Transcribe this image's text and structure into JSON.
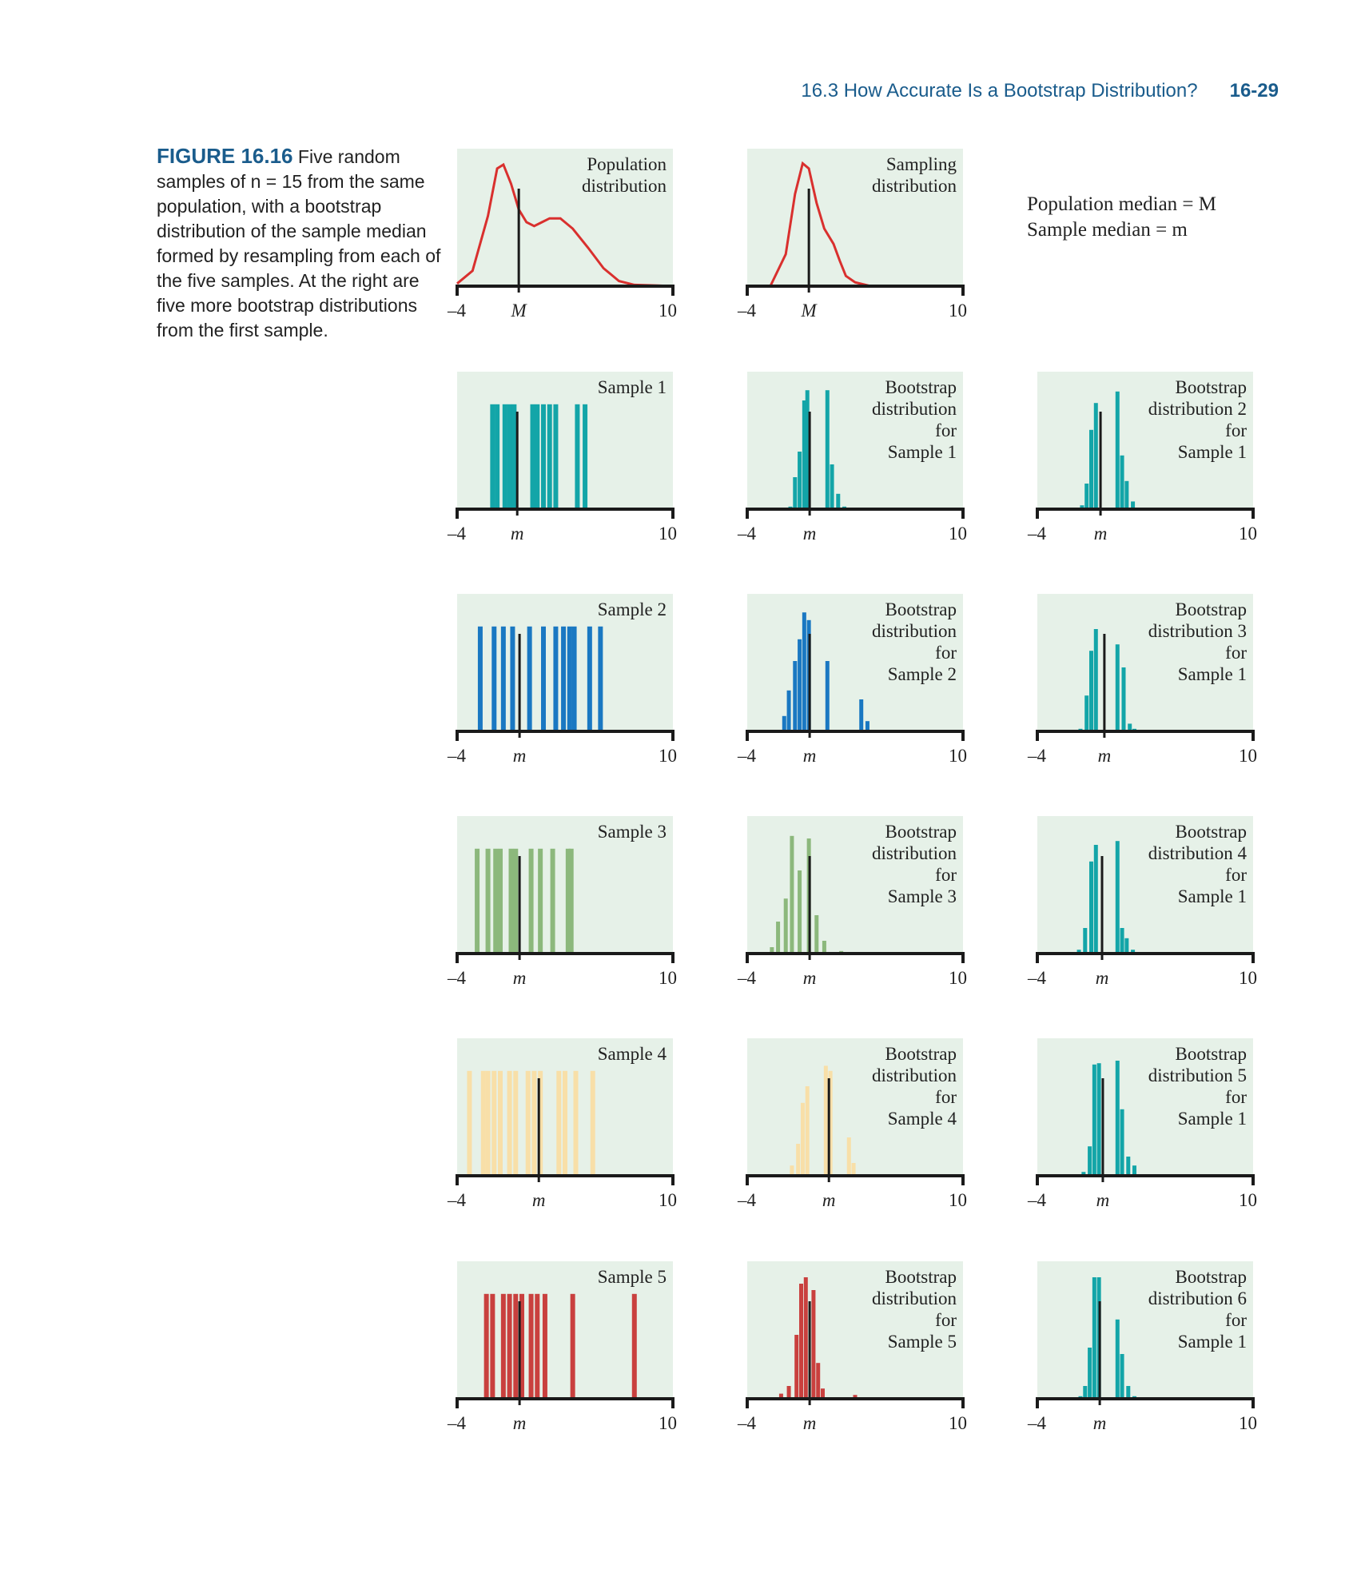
{
  "header": {
    "section": "16.3 How Accurate Is a Bootstrap Distribution?",
    "page": "16-29"
  },
  "caption": {
    "label": "FIGURE 16.16",
    "text": "Five random samples of n = 15 from the same population, with a bootstrap distribution of the sample median formed by resampling from each of the five samples. At the right are five more bootstrap distributions from the first sample."
  },
  "legend_note": {
    "line1": "Population median = M",
    "line2": "Sample median = m"
  },
  "colors": {
    "panel_bg": "#e6f1e8",
    "axis": "#1a1a1a",
    "population_curve": "#d9302e",
    "sample1": "#13a5a8",
    "sample2": "#1a78c2",
    "sample3": "#8cb87c",
    "sample4": "#f8dfa8",
    "sample5": "#c9403e"
  },
  "chart_data": [
    {
      "id": "pop",
      "type": "area",
      "title": "Population\ndistribution",
      "x_range": [
        -4,
        10
      ],
      "x_ticks": [
        "–4",
        "M",
        "10"
      ],
      "marker": 0,
      "color": "population_curve",
      "curve": [
        [
          -4,
          0.02
        ],
        [
          -3,
          0.12
        ],
        [
          -2,
          0.55
        ],
        [
          -1.4,
          0.92
        ],
        [
          -1,
          0.95
        ],
        [
          -0.5,
          0.8
        ],
        [
          0,
          0.6
        ],
        [
          0.5,
          0.5
        ],
        [
          1,
          0.47
        ],
        [
          1.5,
          0.5
        ],
        [
          2,
          0.53
        ],
        [
          2.7,
          0.53
        ],
        [
          3.5,
          0.45
        ],
        [
          4.5,
          0.3
        ],
        [
          5.5,
          0.14
        ],
        [
          6.5,
          0.04
        ],
        [
          7.5,
          0.01
        ],
        [
          9,
          0.005
        ],
        [
          10,
          0
        ]
      ]
    },
    {
      "id": "samp",
      "type": "area",
      "title": "Sampling\ndistribution",
      "x_range": [
        -4,
        10
      ],
      "x_ticks": [
        "–4",
        "M",
        "10"
      ],
      "marker": 0,
      "color": "population_curve",
      "curve": [
        [
          -2.5,
          0
        ],
        [
          -1.5,
          0.25
        ],
        [
          -0.9,
          0.72
        ],
        [
          -0.4,
          0.96
        ],
        [
          0,
          0.92
        ],
        [
          0.5,
          0.65
        ],
        [
          1,
          0.45
        ],
        [
          1.6,
          0.33
        ],
        [
          2,
          0.2
        ],
        [
          2.4,
          0.08
        ],
        [
          3,
          0.03
        ],
        [
          4,
          0
        ]
      ]
    },
    {
      "id": "s1",
      "type": "bar",
      "title": "Sample 1",
      "x_range": [
        -4,
        10
      ],
      "x_ticks": [
        "–4",
        "m",
        "10"
      ],
      "marker": -0.1,
      "color": "sample1",
      "height": 0.82,
      "values": [
        -1.7,
        -1.4,
        -0.9,
        -0.6,
        -0.3,
        0.9,
        1.2,
        1.6,
        2.0,
        2.4,
        3.8,
        4.3
      ]
    },
    {
      "id": "b1",
      "type": "bar",
      "title": "Bootstrap\ndistribution\nfor\nSample 1",
      "x_range": [
        -4,
        10
      ],
      "x_ticks": [
        "–4",
        "m",
        "10"
      ],
      "marker": 0.05,
      "color": "sample1",
      "bins": [
        [
          -1.2,
          0.02
        ],
        [
          -0.9,
          0.25
        ],
        [
          -0.6,
          0.45
        ],
        [
          -0.3,
          0.85
        ],
        [
          -0.1,
          0.93
        ],
        [
          1.2,
          0.93
        ],
        [
          1.5,
          0.35
        ],
        [
          1.9,
          0.12
        ],
        [
          2.3,
          0.02
        ]
      ]
    },
    {
      "id": "b2s1",
      "type": "bar",
      "title": "Bootstrap\ndistribution 2\nfor\nSample 1",
      "x_range": [
        -4,
        10
      ],
      "x_ticks": [
        "–4",
        "m",
        "10"
      ],
      "marker": 0.1,
      "color": "sample1",
      "bins": [
        [
          -1.1,
          0.03
        ],
        [
          -0.8,
          0.2
        ],
        [
          -0.5,
          0.62
        ],
        [
          -0.2,
          0.83
        ],
        [
          1.2,
          0.92
        ],
        [
          1.5,
          0.42
        ],
        [
          1.8,
          0.22
        ],
        [
          2.2,
          0.06
        ]
      ]
    },
    {
      "id": "s2",
      "type": "bar",
      "title": "Sample 2",
      "x_range": [
        -4,
        10
      ],
      "x_ticks": [
        "–4",
        "m",
        "10"
      ],
      "marker": 0.05,
      "color": "sample2",
      "height": 0.82,
      "values": [
        -2.5,
        -1.6,
        -1.0,
        -0.4,
        0.7,
        1.6,
        2.4,
        2.9,
        3.3,
        3.6,
        4.6,
        5.3
      ]
    },
    {
      "id": "b2",
      "type": "bar",
      "title": "Bootstrap\ndistribution\nfor\nSample 2",
      "x_range": [
        -4,
        10
      ],
      "x_ticks": [
        "–4",
        "m",
        "10"
      ],
      "marker": 0.05,
      "color": "sample2",
      "bins": [
        [
          -1.6,
          0.12
        ],
        [
          -1.3,
          0.32
        ],
        [
          -0.9,
          0.55
        ],
        [
          -0.6,
          0.72
        ],
        [
          -0.3,
          0.93
        ],
        [
          0,
          0.87
        ],
        [
          1.2,
          0.55
        ],
        [
          3.4,
          0.25
        ],
        [
          3.8,
          0.08
        ]
      ]
    },
    {
      "id": "b3s1",
      "type": "bar",
      "title": "Bootstrap\ndistribution 3\nfor\nSample 1",
      "x_range": [
        -4,
        10
      ],
      "x_ticks": [
        "–4",
        "m",
        "10"
      ],
      "marker": 0.35,
      "color": "sample1",
      "bins": [
        [
          -1.2,
          0.02
        ],
        [
          -0.8,
          0.28
        ],
        [
          -0.5,
          0.63
        ],
        [
          -0.2,
          0.8
        ],
        [
          1.2,
          0.68
        ],
        [
          1.6,
          0.5
        ],
        [
          2,
          0.06
        ],
        [
          2.3,
          0.02
        ]
      ]
    },
    {
      "id": "s3",
      "type": "bar",
      "title": "Sample 3",
      "x_range": [
        -4,
        10
      ],
      "x_ticks": [
        "–4",
        "m",
        "10"
      ],
      "marker": 0.05,
      "color": "sample3",
      "height": 0.82,
      "values": [
        -2.7,
        -2.0,
        -1.5,
        -1.2,
        -0.5,
        -0.2,
        0.8,
        1.4,
        2.2,
        3.2,
        3.4
      ]
    },
    {
      "id": "b3",
      "type": "bar",
      "title": "Bootstrap\ndistribution\nfor\nSample 3",
      "x_range": [
        -4,
        10
      ],
      "x_ticks": [
        "–4",
        "m",
        "10"
      ],
      "marker": 0.05,
      "color": "sample3",
      "bins": [
        [
          -2.4,
          0.05
        ],
        [
          -2,
          0.25
        ],
        [
          -1.5,
          0.43
        ],
        [
          -1.1,
          0.92
        ],
        [
          -0.6,
          0.65
        ],
        [
          0,
          0.9
        ],
        [
          0.5,
          0.3
        ],
        [
          1,
          0.1
        ],
        [
          2.1,
          0.02
        ]
      ]
    },
    {
      "id": "b4s1",
      "type": "bar",
      "title": "Bootstrap\ndistribution 4\nfor\nSample 1",
      "x_range": [
        -4,
        10
      ],
      "x_ticks": [
        "–4",
        "m",
        "10"
      ],
      "marker": 0.2,
      "color": "sample1",
      "bins": [
        [
          -1.3,
          0.03
        ],
        [
          -0.9,
          0.2
        ],
        [
          -0.5,
          0.72
        ],
        [
          -0.2,
          0.85
        ],
        [
          1.2,
          0.88
        ],
        [
          1.5,
          0.2
        ],
        [
          1.8,
          0.12
        ],
        [
          2.2,
          0.03
        ]
      ]
    },
    {
      "id": "s4",
      "type": "bar",
      "title": "Sample 4",
      "x_range": [
        -4,
        10
      ],
      "x_ticks": [
        "–4",
        "m",
        "10"
      ],
      "marker": 1.3,
      "color": "sample4",
      "height": 0.82,
      "values": [
        -3.2,
        -2.3,
        -2.0,
        -1.6,
        -1.2,
        -0.6,
        -0.2,
        0.6,
        1.0,
        1.4,
        2.6,
        3.0,
        3.7,
        4.8
      ]
    },
    {
      "id": "b4",
      "type": "bar",
      "title": "Bootstrap\ndistribution\nfor\nSample 4",
      "x_range": [
        -4,
        10
      ],
      "x_ticks": [
        "–4",
        "m",
        "10"
      ],
      "marker": 1.3,
      "color": "sample4",
      "bins": [
        [
          -1.1,
          0.08
        ],
        [
          -0.7,
          0.25
        ],
        [
          -0.4,
          0.57
        ],
        [
          -0.1,
          0.7
        ],
        [
          1.1,
          0.86
        ],
        [
          1.4,
          0.82
        ],
        [
          2.6,
          0.3
        ],
        [
          2.9,
          0.1
        ]
      ]
    },
    {
      "id": "b5s1",
      "type": "bar",
      "title": "Bootstrap\ndistribution 5\nfor\nSample 1",
      "x_range": [
        -4,
        10
      ],
      "x_ticks": [
        "–4",
        "m",
        "10"
      ],
      "marker": 0.25,
      "color": "sample1",
      "bins": [
        [
          -1.0,
          0.03
        ],
        [
          -0.6,
          0.23
        ],
        [
          -0.3,
          0.87
        ],
        [
          0,
          0.88
        ],
        [
          1.2,
          0.9
        ],
        [
          1.5,
          0.52
        ],
        [
          1.9,
          0.15
        ],
        [
          2.3,
          0.08
        ]
      ]
    },
    {
      "id": "s5",
      "type": "bar",
      "title": "Sample 5",
      "x_range": [
        -4,
        10
      ],
      "x_ticks": [
        "–4",
        "m",
        "10"
      ],
      "marker": 0.05,
      "color": "sample5",
      "height": 0.82,
      "values": [
        -2.1,
        -1.7,
        -1.0,
        -0.6,
        -0.2,
        0.2,
        0.8,
        1.2,
        1.7,
        3.5,
        7.5
      ]
    },
    {
      "id": "b5",
      "type": "bar",
      "title": "Bootstrap\ndistribution\nfor\nSample 5",
      "x_range": [
        -4,
        10
      ],
      "x_ticks": [
        "–4",
        "m",
        "10"
      ],
      "marker": 0.05,
      "color": "sample5",
      "bins": [
        [
          -1.8,
          0.04
        ],
        [
          -1.3,
          0.1
        ],
        [
          -0.8,
          0.5
        ],
        [
          -0.5,
          0.9
        ],
        [
          -0.2,
          0.95
        ],
        [
          0.3,
          0.85
        ],
        [
          0.6,
          0.28
        ],
        [
          0.9,
          0.08
        ],
        [
          3,
          0.03
        ]
      ]
    },
    {
      "id": "b6s1",
      "type": "bar",
      "title": "Bootstrap\ndistribution 6\nfor\nSample 1",
      "x_range": [
        -4,
        10
      ],
      "x_ticks": [
        "–4",
        "m",
        "10"
      ],
      "marker": 0.05,
      "color": "sample1",
      "bins": [
        [
          -1.2,
          0.02
        ],
        [
          -0.9,
          0.1
        ],
        [
          -0.6,
          0.4
        ],
        [
          -0.3,
          0.95
        ],
        [
          0,
          0.95
        ],
        [
          1.2,
          0.62
        ],
        [
          1.5,
          0.35
        ],
        [
          1.9,
          0.1
        ],
        [
          2.3,
          0.02
        ]
      ]
    }
  ]
}
